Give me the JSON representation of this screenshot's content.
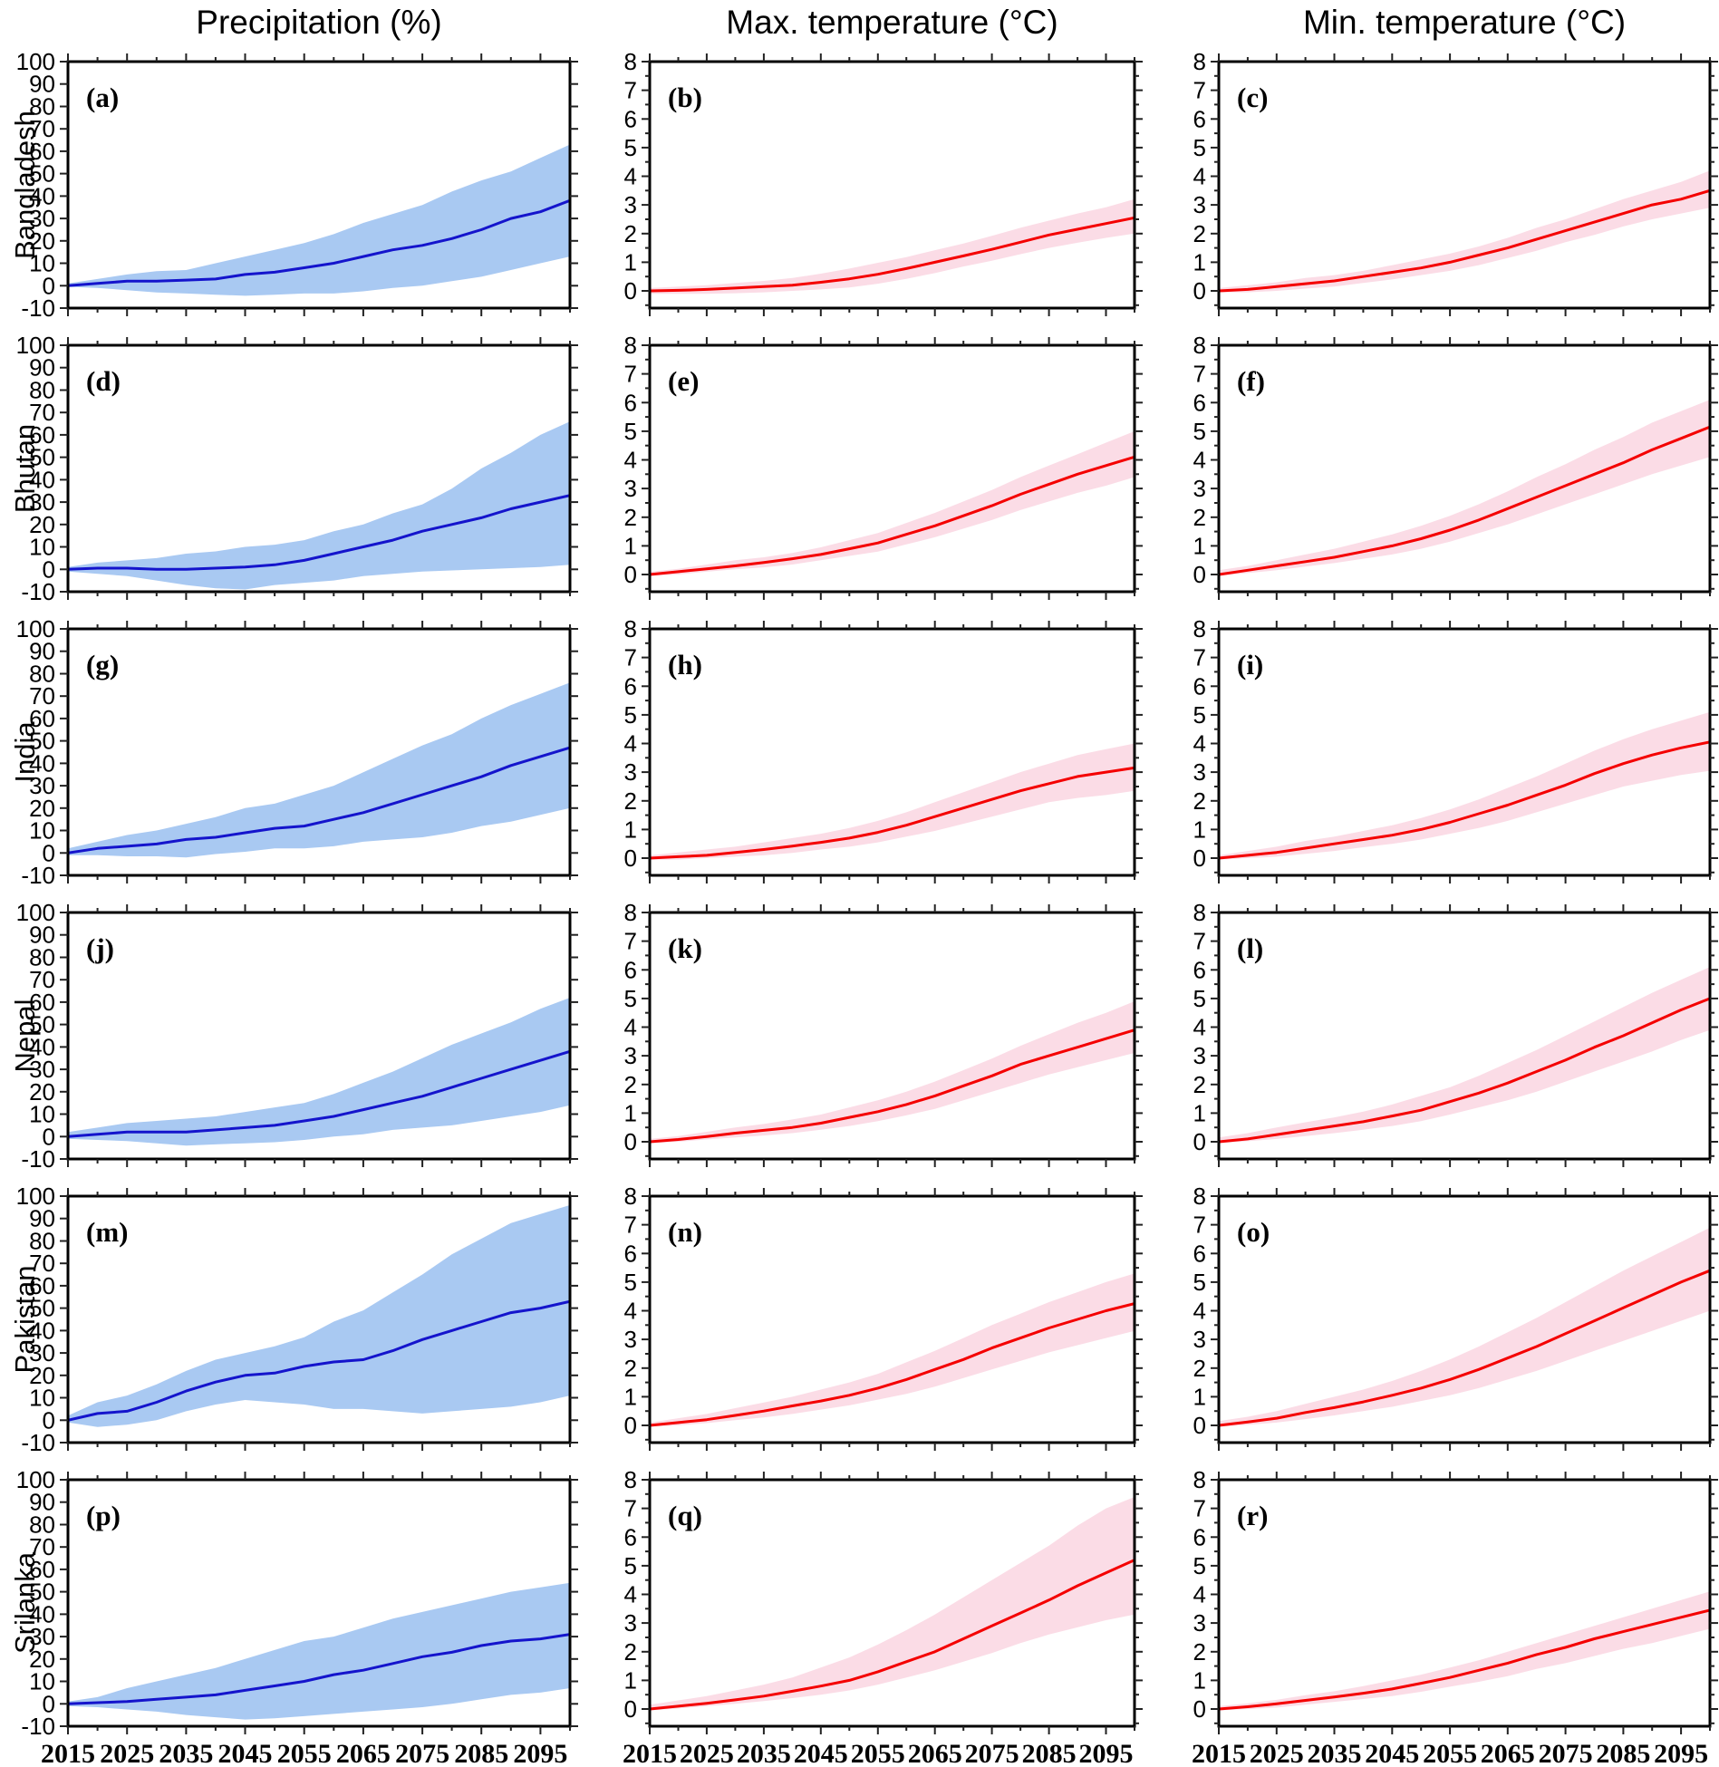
{
  "titles": {
    "col1": "Precipitation (%)",
    "col2": "Max. temperature (°C)",
    "col3": "Min. temperature (°C)"
  },
  "row_labels": [
    "Bangladesh",
    "Bhutan",
    "India",
    "Nepal",
    "Pakistan",
    "Srilanka"
  ],
  "x_tick_labels": [
    "2015",
    "2025",
    "2035",
    "2045",
    "2055",
    "2065",
    "2075",
    "2085",
    "2095"
  ],
  "colors": {
    "precip_line": "#1414cc",
    "precip_band": "#a9c9f2",
    "temp_line": "#f40000",
    "temp_band": "#fbdce6",
    "frame": "#000000",
    "background": "#ffffff"
  },
  "axes": {
    "x": {
      "min": 2015,
      "max": 2100,
      "major_step": 10,
      "minor_step": 5,
      "label_max": 2095
    },
    "precip": {
      "ymin": -10,
      "ymax": 100,
      "tick_step": 10,
      "tick_min": -10,
      "tick_max": 100
    },
    "temp": {
      "ymin": -0.6,
      "ymax": 8,
      "tick_step": 1,
      "tick_min": 0,
      "tick_max": 8,
      "minor_step": 0.5
    }
  },
  "years": [
    2015,
    2020,
    2025,
    2030,
    2035,
    2040,
    2045,
    2050,
    2055,
    2060,
    2065,
    2070,
    2075,
    2080,
    2085,
    2090,
    2095,
    2100
  ],
  "chart_data": [
    {
      "type": "line",
      "panel_label": "(a)",
      "row": "Bangladesh",
      "column": "Precipitation (%)",
      "ylim": [
        -10,
        100
      ],
      "axis": "precip",
      "median": [
        0,
        1,
        2,
        2,
        2.5,
        3,
        5,
        6,
        8,
        10,
        13,
        16,
        18,
        21,
        25,
        30,
        33,
        38
      ],
      "upper": [
        1,
        3,
        5,
        6.5,
        7,
        10,
        13,
        16,
        19,
        23,
        28,
        32,
        36,
        42,
        47,
        51,
        57,
        63
      ],
      "lower": [
        -0.5,
        -1,
        -2,
        -3,
        -3.5,
        -4,
        -4.5,
        -4,
        -3.5,
        -3.5,
        -2.5,
        -1,
        0,
        2,
        4,
        7,
        10,
        13
      ]
    },
    {
      "type": "line",
      "panel_label": "(b)",
      "row": "Bangladesh",
      "column": "Max. temperature (°C)",
      "ylim": [
        0,
        8
      ],
      "axis": "temp",
      "median": [
        0,
        0.02,
        0.05,
        0.1,
        0.15,
        0.2,
        0.3,
        0.42,
        0.58,
        0.78,
        1.0,
        1.22,
        1.45,
        1.7,
        1.95,
        2.15,
        2.35,
        2.55
      ],
      "upper": [
        0.1,
        0.15,
        0.2,
        0.28,
        0.35,
        0.45,
        0.6,
        0.78,
        0.98,
        1.18,
        1.42,
        1.65,
        1.92,
        2.2,
        2.45,
        2.7,
        2.92,
        3.2
      ],
      "lower": [
        -0.1,
        -0.1,
        -0.1,
        -0.08,
        -0.05,
        0,
        0.05,
        0.12,
        0.25,
        0.42,
        0.62,
        0.85,
        1.05,
        1.28,
        1.5,
        1.68,
        1.85,
        2.0
      ]
    },
    {
      "type": "line",
      "panel_label": "(c)",
      "row": "Bangladesh",
      "column": "Min. temperature (°C)",
      "ylim": [
        0,
        8
      ],
      "axis": "temp",
      "median": [
        0,
        0.05,
        0.15,
        0.25,
        0.35,
        0.5,
        0.65,
        0.8,
        1.0,
        1.25,
        1.5,
        1.8,
        2.1,
        2.4,
        2.7,
        3.0,
        3.2,
        3.5
      ],
      "upper": [
        0.1,
        0.2,
        0.3,
        0.45,
        0.55,
        0.7,
        0.9,
        1.1,
        1.3,
        1.55,
        1.85,
        2.2,
        2.5,
        2.85,
        3.2,
        3.5,
        3.8,
        4.2
      ],
      "lower": [
        -0.05,
        -0.05,
        0,
        0.08,
        0.15,
        0.28,
        0.4,
        0.55,
        0.7,
        0.9,
        1.15,
        1.4,
        1.7,
        1.95,
        2.25,
        2.5,
        2.7,
        2.9
      ]
    },
    {
      "type": "line",
      "panel_label": "(d)",
      "row": "Bhutan",
      "column": "Precipitation (%)",
      "ylim": [
        -10,
        100
      ],
      "axis": "precip",
      "median": [
        0,
        0.5,
        0.5,
        0,
        0,
        0.5,
        1,
        2,
        4,
        7,
        10,
        13,
        17,
        20,
        23,
        27,
        30,
        33
      ],
      "upper": [
        1,
        3,
        4,
        5,
        7,
        8,
        10,
        11,
        13,
        17,
        20,
        25,
        29,
        36,
        45,
        52,
        60,
        66
      ],
      "lower": [
        -1,
        -2,
        -3,
        -5,
        -7,
        -8.5,
        -9,
        -7,
        -6,
        -5,
        -3,
        -2,
        -1,
        -0.5,
        0,
        0.5,
        1,
        2
      ]
    },
    {
      "type": "line",
      "panel_label": "(e)",
      "row": "Bhutan",
      "column": "Max. temperature (°C)",
      "ylim": [
        0,
        8
      ],
      "axis": "temp",
      "median": [
        0,
        0.1,
        0.2,
        0.3,
        0.42,
        0.55,
        0.7,
        0.9,
        1.1,
        1.4,
        1.7,
        2.05,
        2.4,
        2.8,
        3.15,
        3.5,
        3.8,
        4.1
      ],
      "upper": [
        0.1,
        0.2,
        0.35,
        0.5,
        0.6,
        0.75,
        0.95,
        1.2,
        1.45,
        1.8,
        2.15,
        2.55,
        2.95,
        3.4,
        3.8,
        4.2,
        4.6,
        5.0
      ],
      "lower": [
        -0.05,
        0,
        0.1,
        0.18,
        0.25,
        0.35,
        0.5,
        0.65,
        0.8,
        1.05,
        1.3,
        1.6,
        1.9,
        2.25,
        2.55,
        2.85,
        3.1,
        3.4
      ]
    },
    {
      "type": "line",
      "panel_label": "(f)",
      "row": "Bhutan",
      "column": "Min. temperature (°C)",
      "ylim": [
        0,
        8
      ],
      "axis": "temp",
      "median": [
        0,
        0.15,
        0.3,
        0.45,
        0.6,
        0.8,
        1.0,
        1.25,
        1.55,
        1.9,
        2.3,
        2.7,
        3.1,
        3.5,
        3.9,
        4.35,
        4.75,
        5.15
      ],
      "upper": [
        0.15,
        0.3,
        0.5,
        0.7,
        0.9,
        1.15,
        1.4,
        1.7,
        2.05,
        2.45,
        2.9,
        3.4,
        3.85,
        4.35,
        4.8,
        5.3,
        5.7,
        6.1
      ],
      "lower": [
        -0.05,
        0.05,
        0.15,
        0.28,
        0.4,
        0.55,
        0.7,
        0.9,
        1.15,
        1.45,
        1.75,
        2.1,
        2.45,
        2.8,
        3.15,
        3.5,
        3.8,
        4.1
      ]
    },
    {
      "type": "line",
      "panel_label": "(g)",
      "row": "India",
      "column": "Precipitation (%)",
      "ylim": [
        -10,
        100
      ],
      "axis": "precip",
      "median": [
        0,
        2,
        3,
        4,
        6,
        7,
        9,
        11,
        12,
        15,
        18,
        22,
        26,
        30,
        34,
        39,
        43,
        47
      ],
      "upper": [
        2,
        5,
        8,
        10,
        13,
        16,
        20,
        22,
        26,
        30,
        36,
        42,
        48,
        53,
        60,
        66,
        71,
        76
      ],
      "lower": [
        -1,
        -1,
        -1.5,
        -1.5,
        -2,
        -0.5,
        0.5,
        2,
        2,
        3,
        5,
        6,
        7,
        9,
        12,
        14,
        17,
        20
      ]
    },
    {
      "type": "line",
      "panel_label": "(h)",
      "row": "India",
      "column": "Max. temperature (°C)",
      "ylim": [
        0,
        8
      ],
      "axis": "temp",
      "median": [
        0,
        0.05,
        0.1,
        0.2,
        0.3,
        0.42,
        0.55,
        0.7,
        0.9,
        1.15,
        1.45,
        1.75,
        2.05,
        2.35,
        2.6,
        2.85,
        3.0,
        3.15
      ],
      "upper": [
        0.1,
        0.2,
        0.3,
        0.4,
        0.55,
        0.7,
        0.85,
        1.05,
        1.3,
        1.6,
        1.95,
        2.3,
        2.65,
        3.0,
        3.3,
        3.6,
        3.8,
        4.0
      ],
      "lower": [
        -0.05,
        -0.05,
        0,
        0.05,
        0.1,
        0.18,
        0.3,
        0.4,
        0.55,
        0.75,
        0.95,
        1.2,
        1.45,
        1.7,
        1.95,
        2.1,
        2.2,
        2.35
      ]
    },
    {
      "type": "line",
      "panel_label": "(i)",
      "row": "India",
      "column": "Min. temperature (°C)",
      "ylim": [
        0,
        8
      ],
      "axis": "temp",
      "median": [
        0,
        0.1,
        0.2,
        0.35,
        0.5,
        0.65,
        0.8,
        1.0,
        1.25,
        1.55,
        1.85,
        2.2,
        2.55,
        2.95,
        3.3,
        3.6,
        3.85,
        4.05
      ],
      "upper": [
        0.1,
        0.25,
        0.4,
        0.6,
        0.75,
        0.95,
        1.15,
        1.4,
        1.7,
        2.05,
        2.45,
        2.85,
        3.3,
        3.75,
        4.15,
        4.5,
        4.8,
        5.1
      ],
      "lower": [
        -0.05,
        0,
        0.05,
        0.15,
        0.25,
        0.38,
        0.5,
        0.65,
        0.85,
        1.05,
        1.3,
        1.6,
        1.9,
        2.2,
        2.5,
        2.7,
        2.9,
        3.05
      ]
    },
    {
      "type": "line",
      "panel_label": "(j)",
      "row": "Nepal",
      "column": "Precipitation (%)",
      "ylim": [
        -10,
        100
      ],
      "axis": "precip",
      "median": [
        0,
        1,
        2,
        2,
        2,
        3,
        4,
        5,
        7,
        9,
        12,
        15,
        18,
        22,
        26,
        30,
        34,
        38
      ],
      "upper": [
        2,
        4,
        6,
        7,
        8,
        9,
        11,
        13,
        15,
        19,
        24,
        29,
        35,
        41,
        46,
        51,
        57,
        62
      ],
      "lower": [
        -1,
        -1.5,
        -2,
        -3,
        -4,
        -3.5,
        -3,
        -2.5,
        -1.5,
        0,
        1,
        3,
        4,
        5,
        7,
        9,
        11,
        14
      ]
    },
    {
      "type": "line",
      "panel_label": "(k)",
      "row": "Nepal",
      "column": "Max. temperature (°C)",
      "ylim": [
        0,
        8
      ],
      "axis": "temp",
      "median": [
        0,
        0.08,
        0.18,
        0.3,
        0.4,
        0.5,
        0.65,
        0.85,
        1.05,
        1.3,
        1.6,
        1.95,
        2.3,
        2.7,
        3.0,
        3.3,
        3.6,
        3.9
      ],
      "upper": [
        0.1,
        0.2,
        0.35,
        0.5,
        0.62,
        0.78,
        0.95,
        1.2,
        1.45,
        1.75,
        2.1,
        2.5,
        2.9,
        3.35,
        3.75,
        4.15,
        4.5,
        4.9
      ],
      "lower": [
        -0.05,
        0,
        0.08,
        0.15,
        0.22,
        0.3,
        0.42,
        0.55,
        0.72,
        0.92,
        1.15,
        1.45,
        1.75,
        2.05,
        2.35,
        2.6,
        2.85,
        3.1
      ]
    },
    {
      "type": "line",
      "panel_label": "(l)",
      "row": "Nepal",
      "column": "Min. temperature (°C)",
      "ylim": [
        0,
        8
      ],
      "axis": "temp",
      "median": [
        0,
        0.1,
        0.25,
        0.4,
        0.55,
        0.7,
        0.9,
        1.1,
        1.4,
        1.7,
        2.05,
        2.45,
        2.85,
        3.3,
        3.7,
        4.15,
        4.6,
        5.0
      ],
      "upper": [
        0.15,
        0.3,
        0.5,
        0.68,
        0.85,
        1.05,
        1.3,
        1.6,
        1.9,
        2.3,
        2.75,
        3.2,
        3.7,
        4.2,
        4.7,
        5.2,
        5.65,
        6.1
      ],
      "lower": [
        -0.05,
        0.02,
        0.1,
        0.2,
        0.3,
        0.42,
        0.55,
        0.72,
        0.95,
        1.2,
        1.45,
        1.75,
        2.1,
        2.45,
        2.8,
        3.15,
        3.55,
        3.9
      ]
    },
    {
      "type": "line",
      "panel_label": "(m)",
      "row": "Pakistan",
      "column": "Precipitation (%)",
      "ylim": [
        -10,
        100
      ],
      "axis": "precip",
      "median": [
        0,
        3,
        4,
        8,
        13,
        17,
        20,
        21,
        24,
        26,
        27,
        31,
        36,
        40,
        44,
        48,
        50,
        53
      ],
      "upper": [
        2,
        8,
        11,
        16,
        22,
        27,
        30,
        33,
        37,
        44,
        49,
        57,
        65,
        74,
        81,
        88,
        92,
        96
      ],
      "lower": [
        -1,
        -3,
        -2,
        0,
        4,
        7,
        9,
        8,
        7,
        5,
        5,
        4,
        3,
        4,
        5,
        6,
        8,
        11
      ]
    },
    {
      "type": "line",
      "panel_label": "(n)",
      "row": "Pakistan",
      "column": "Max. temperature (°C)",
      "ylim": [
        0,
        8
      ],
      "axis": "temp",
      "median": [
        0,
        0.1,
        0.2,
        0.35,
        0.5,
        0.68,
        0.85,
        1.05,
        1.3,
        1.6,
        1.95,
        2.3,
        2.7,
        3.05,
        3.4,
        3.7,
        4.0,
        4.25
      ],
      "upper": [
        0.1,
        0.25,
        0.4,
        0.6,
        0.8,
        1.0,
        1.25,
        1.5,
        1.8,
        2.2,
        2.6,
        3.05,
        3.5,
        3.9,
        4.3,
        4.65,
        5.0,
        5.3
      ],
      "lower": [
        -0.05,
        0,
        0.08,
        0.18,
        0.28,
        0.4,
        0.55,
        0.7,
        0.9,
        1.1,
        1.35,
        1.65,
        1.95,
        2.25,
        2.55,
        2.8,
        3.05,
        3.3
      ]
    },
    {
      "type": "line",
      "panel_label": "(o)",
      "row": "Pakistan",
      "column": "Min. temperature (°C)",
      "ylim": [
        0,
        8
      ],
      "axis": "temp",
      "median": [
        0,
        0.12,
        0.25,
        0.45,
        0.62,
        0.82,
        1.05,
        1.3,
        1.6,
        1.95,
        2.35,
        2.75,
        3.2,
        3.65,
        4.1,
        4.55,
        5.0,
        5.4
      ],
      "upper": [
        0.15,
        0.3,
        0.5,
        0.75,
        1.0,
        1.25,
        1.55,
        1.9,
        2.3,
        2.75,
        3.25,
        3.75,
        4.3,
        4.85,
        5.4,
        5.9,
        6.4,
        6.9
      ],
      "lower": [
        -0.05,
        0.02,
        0.1,
        0.22,
        0.35,
        0.5,
        0.65,
        0.85,
        1.05,
        1.3,
        1.6,
        1.9,
        2.25,
        2.6,
        2.95,
        3.3,
        3.65,
        4.0
      ]
    },
    {
      "type": "line",
      "panel_label": "(p)",
      "row": "Srilanka",
      "column": "Precipitation (%)",
      "ylim": [
        -10,
        100
      ],
      "axis": "precip",
      "median": [
        0,
        0.5,
        1,
        2,
        3,
        4,
        6,
        8,
        10,
        13,
        15,
        18,
        21,
        23,
        26,
        28,
        29,
        31
      ],
      "upper": [
        1,
        3,
        7,
        10,
        13,
        16,
        20,
        24,
        28,
        30,
        34,
        38,
        41,
        44,
        47,
        50,
        52,
        54
      ],
      "lower": [
        -1,
        -1.5,
        -2.5,
        -3.5,
        -5,
        -6,
        -7,
        -6.5,
        -5.5,
        -4.5,
        -3.5,
        -2.5,
        -1.5,
        0,
        2,
        4,
        5,
        7
      ]
    },
    {
      "type": "line",
      "panel_label": "(q)",
      "row": "Srilanka",
      "column": "Max. temperature (°C)",
      "ylim": [
        0,
        8
      ],
      "axis": "temp",
      "median": [
        0,
        0.1,
        0.2,
        0.32,
        0.45,
        0.62,
        0.8,
        1.0,
        1.3,
        1.65,
        2.0,
        2.45,
        2.9,
        3.35,
        3.8,
        4.3,
        4.75,
        5.2
      ],
      "upper": [
        0.15,
        0.3,
        0.45,
        0.65,
        0.85,
        1.1,
        1.45,
        1.8,
        2.25,
        2.75,
        3.3,
        3.9,
        4.5,
        5.1,
        5.7,
        6.4,
        7.0,
        7.4
      ],
      "lower": [
        -0.05,
        0.02,
        0.1,
        0.18,
        0.28,
        0.38,
        0.5,
        0.65,
        0.85,
        1.1,
        1.35,
        1.65,
        1.95,
        2.3,
        2.6,
        2.85,
        3.1,
        3.3
      ]
    },
    {
      "type": "line",
      "panel_label": "(r)",
      "row": "Srilanka",
      "column": "Min. temperature (°C)",
      "ylim": [
        0,
        8
      ],
      "axis": "temp",
      "median": [
        0,
        0.08,
        0.18,
        0.3,
        0.42,
        0.55,
        0.7,
        0.9,
        1.1,
        1.35,
        1.6,
        1.9,
        2.15,
        2.45,
        2.7,
        2.95,
        3.2,
        3.45
      ],
      "upper": [
        0.1,
        0.2,
        0.32,
        0.48,
        0.62,
        0.8,
        1.0,
        1.2,
        1.45,
        1.7,
        2.0,
        2.3,
        2.6,
        2.9,
        3.2,
        3.5,
        3.8,
        4.1
      ],
      "lower": [
        -0.05,
        0,
        0.05,
        0.15,
        0.25,
        0.35,
        0.45,
        0.6,
        0.78,
        0.95,
        1.15,
        1.4,
        1.6,
        1.85,
        2.1,
        2.3,
        2.55,
        2.8
      ]
    }
  ]
}
